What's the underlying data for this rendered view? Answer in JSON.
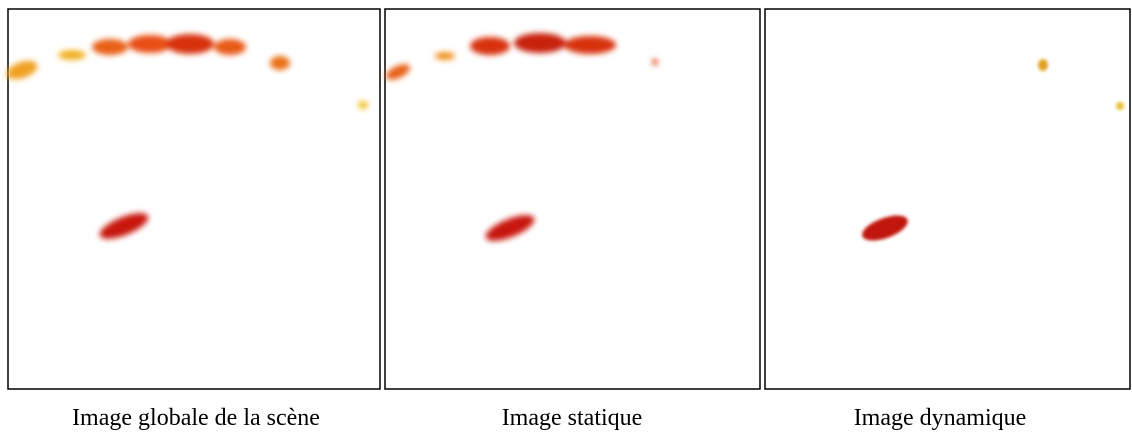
{
  "panels": [
    {
      "caption": "Image globale de la scène"
    },
    {
      "caption": "Image statique"
    },
    {
      "caption": "Image dynamique"
    }
  ]
}
